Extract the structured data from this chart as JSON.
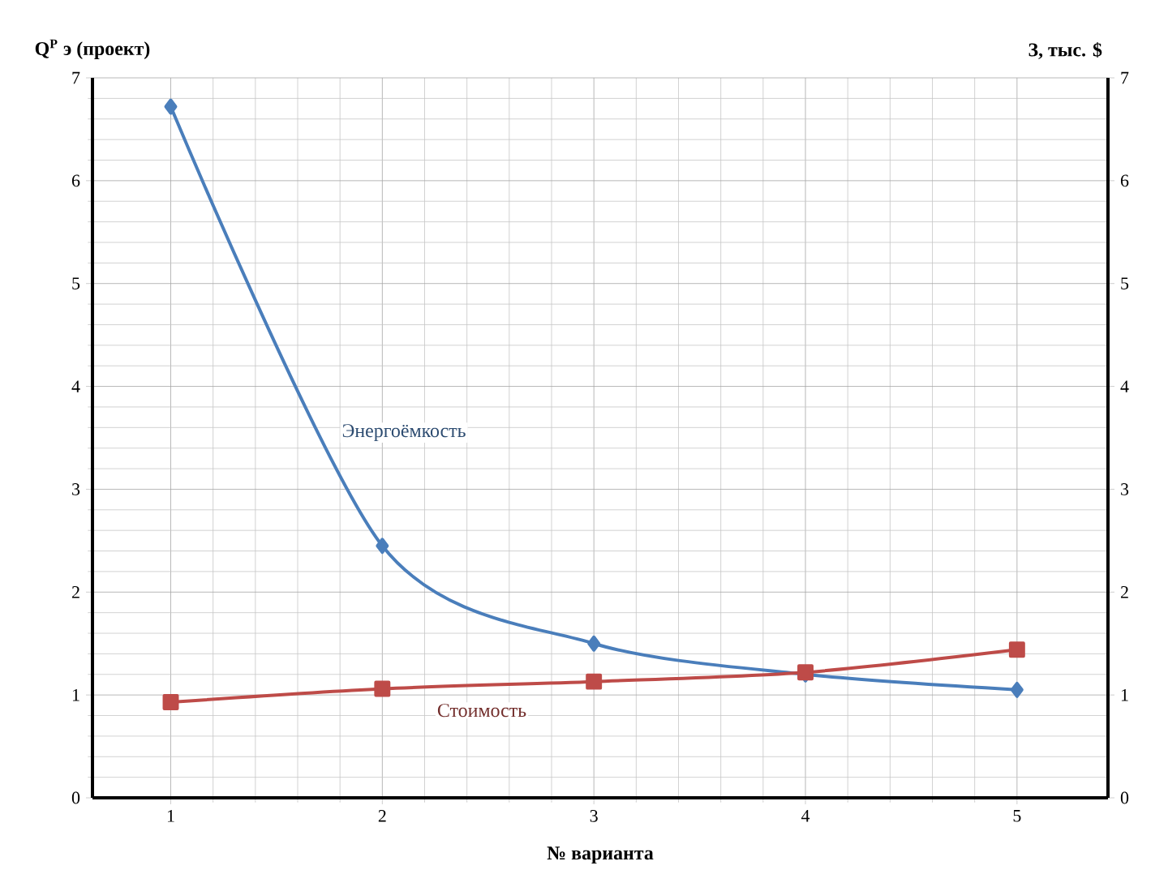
{
  "chart_data": {
    "type": "line",
    "xlabel": "№ варианта",
    "ylabel": "Q$^{P}$ э (проект)",
    "y2label": "З, тыс. $",
    "categories": [
      "1",
      "2",
      "3",
      "4",
      "5"
    ],
    "series": [
      {
        "name": "Энергоёмкость",
        "color": "#4a7ebb",
        "marker": "diamond",
        "values": [
          6.72,
          2.45,
          1.5,
          1.2,
          1.05
        ]
      },
      {
        "name": "Стоимость",
        "color": "#be4b48",
        "marker": "square",
        "axis": "y2",
        "values": [
          0.93,
          1.06,
          1.13,
          1.22,
          1.44
        ]
      }
    ],
    "ylim": [
      0,
      7
    ],
    "yticks": [
      0,
      1,
      2,
      3,
      4,
      5,
      6,
      7
    ],
    "y2lim": [
      0,
      7
    ],
    "y2ticks": [
      0,
      1,
      2,
      3,
      4,
      5,
      6,
      7
    ],
    "grid": true,
    "line_style": "solid"
  }
}
